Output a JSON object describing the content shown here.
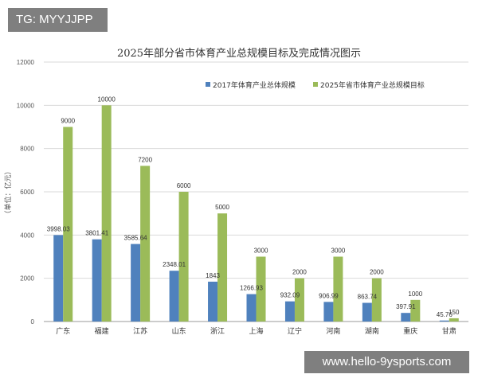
{
  "tag": "TG: MYYJJPP",
  "watermark": "www.hello-9ysports.com",
  "chart_data": {
    "type": "bar",
    "title": "2025年部分省市体育产业总规模目标及完成情况图示",
    "ylabel": "（单位：亿元）",
    "xlabel": "",
    "ylim": [
      0,
      12000
    ],
    "yticks": [
      0,
      2000,
      4000,
      6000,
      8000,
      10000,
      12000
    ],
    "grid": true,
    "legend_position": "top-right",
    "categories": [
      "广东",
      "福建",
      "江苏",
      "山东",
      "浙江",
      "上海",
      "辽宁",
      "河南",
      "湖南",
      "重庆",
      "甘肃"
    ],
    "series": [
      {
        "name": "2017年体育产业总体规模",
        "color": "#4f81bd",
        "values": [
          3998.03,
          3801.41,
          3585.64,
          2348.01,
          1843,
          1266.93,
          932.09,
          906.99,
          863.74,
          397.91,
          45.76
        ],
        "labels": [
          "3998.03",
          "3801.41",
          "3585.64",
          "2348.01",
          "1843",
          "1266.93",
          "932.09",
          "906.99",
          "863.74",
          "397.91",
          "45.76"
        ]
      },
      {
        "name": "2025年省市体育产业总规模目标",
        "color": "#9bbb59",
        "values": [
          9000,
          10000,
          7200,
          6000,
          5000,
          3000,
          2000,
          3000,
          2000,
          1000,
          150
        ],
        "labels": [
          "9000",
          "10000",
          "7200",
          "6000",
          "5000",
          "3000",
          "2000",
          "3000",
          "2000",
          "1000",
          "150"
        ]
      }
    ]
  }
}
